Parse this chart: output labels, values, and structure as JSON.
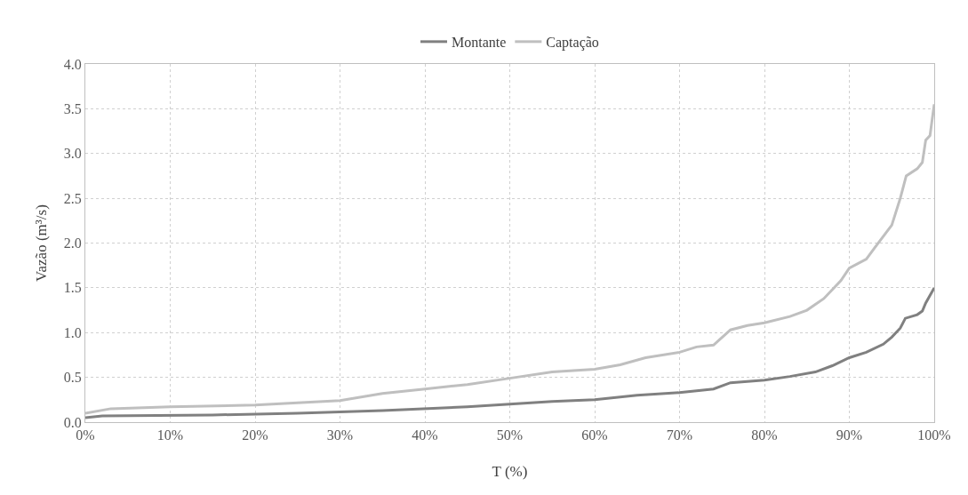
{
  "chart_data": {
    "type": "line",
    "xlabel": "T (%)",
    "ylabel": "Vazão (m³/s)",
    "xlim": [
      0,
      100
    ],
    "xticks": [
      {
        "value": 0,
        "label": "0%"
      },
      {
        "value": 10,
        "label": "10%"
      },
      {
        "value": 20,
        "label": "20%"
      },
      {
        "value": 30,
        "label": "30%"
      },
      {
        "value": 40,
        "label": "40%"
      },
      {
        "value": 50,
        "label": "50%"
      },
      {
        "value": 60,
        "label": "60%"
      },
      {
        "value": 70,
        "label": "70%"
      },
      {
        "value": 80,
        "label": "80%"
      },
      {
        "value": 90,
        "label": "90%"
      },
      {
        "value": 100,
        "label": "100%"
      }
    ],
    "ylim": [
      0,
      4
    ],
    "yticks": [
      {
        "value": 0,
        "label": "0.0"
      },
      {
        "value": 0.5,
        "label": "0.5"
      },
      {
        "value": 1,
        "label": "1.0"
      },
      {
        "value": 1.5,
        "label": "1.5"
      },
      {
        "value": 2,
        "label": "2.0"
      },
      {
        "value": 2.5,
        "label": "2.5"
      },
      {
        "value": 3,
        "label": "3.0"
      },
      {
        "value": 3.5,
        "label": "3.5"
      },
      {
        "value": 4,
        "label": "4.0"
      }
    ],
    "grid": true,
    "legend": "top",
    "marker": "none",
    "line_style": "solid",
    "series": [
      {
        "name": "Montante",
        "color": "#808080",
        "x": [
          0,
          2,
          15,
          25,
          35,
          45,
          50,
          55,
          60,
          65,
          70,
          74,
          76,
          80,
          83,
          86,
          88,
          90,
          92,
          94,
          95,
          96,
          96.6,
          98,
          98.6,
          99,
          100
        ],
        "values": [
          0.05,
          0.07,
          0.08,
          0.1,
          0.13,
          0.17,
          0.2,
          0.23,
          0.25,
          0.3,
          0.33,
          0.37,
          0.44,
          0.47,
          0.51,
          0.56,
          0.63,
          0.72,
          0.78,
          0.87,
          0.95,
          1.05,
          1.16,
          1.2,
          1.24,
          1.33,
          1.5
        ]
      },
      {
        "name": "Captação",
        "color": "#bfbfbf",
        "x": [
          0,
          3,
          10,
          20,
          30,
          35,
          40,
          45,
          50,
          55,
          60,
          63,
          66,
          70,
          72,
          74,
          76,
          78,
          80,
          83,
          85,
          87,
          89,
          90,
          92,
          93,
          95,
          96,
          96.7,
          98,
          98.6,
          99,
          99.5,
          100
        ],
        "values": [
          0.1,
          0.15,
          0.17,
          0.19,
          0.24,
          0.32,
          0.37,
          0.42,
          0.49,
          0.56,
          0.59,
          0.64,
          0.72,
          0.78,
          0.84,
          0.86,
          1.03,
          1.08,
          1.11,
          1.18,
          1.25,
          1.38,
          1.58,
          1.72,
          1.82,
          1.95,
          2.2,
          2.5,
          2.75,
          2.83,
          2.9,
          3.15,
          3.2,
          3.55
        ]
      }
    ]
  }
}
